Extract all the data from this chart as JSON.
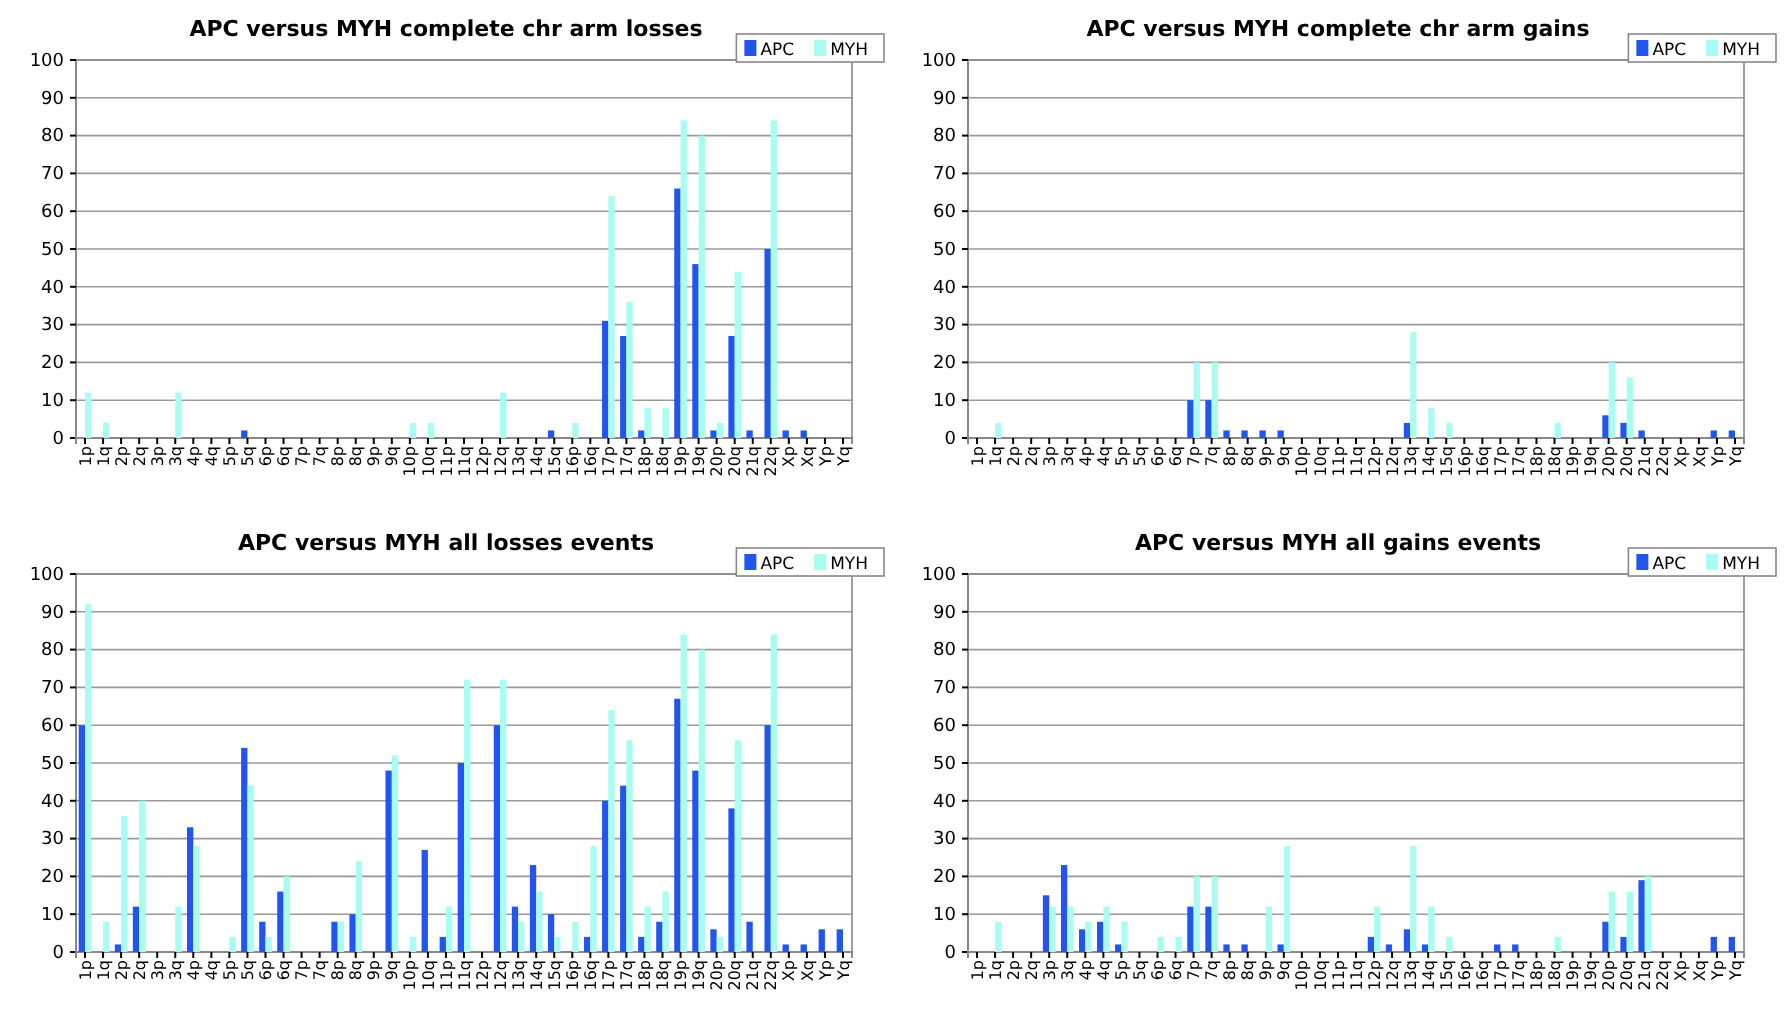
{
  "chart_data": [
    {
      "type": "bar",
      "title": "APC versus MYH complete chr arm losses",
      "categories": [
        "1p",
        "1q",
        "2p",
        "2q",
        "3p",
        "3q",
        "4p",
        "4q",
        "5p",
        "5q",
        "6p",
        "6q",
        "7p",
        "7q",
        "8p",
        "8q",
        "9p",
        "9q",
        "10p",
        "10q",
        "11p",
        "11q",
        "12p",
        "12q",
        "13q",
        "14q",
        "15q",
        "16p",
        "16q",
        "17p",
        "17q",
        "18p",
        "18q",
        "19p",
        "19q",
        "20p",
        "20q",
        "21q",
        "22q",
        "Xp",
        "Xq",
        "Yp",
        "Yq"
      ],
      "ylim": [
        0,
        100
      ],
      "yticks": [
        0,
        10,
        20,
        30,
        40,
        50,
        60,
        70,
        80,
        90,
        100
      ],
      "grid": "y",
      "legend": "top right",
      "series": [
        {
          "name": "APC",
          "color": "#2255ee",
          "values": [
            0,
            0,
            0,
            0,
            0,
            0,
            0,
            0,
            0,
            2,
            0,
            0,
            0,
            0,
            0,
            0,
            0,
            0,
            0,
            0,
            0,
            0,
            0,
            0,
            0,
            0,
            2,
            0,
            0,
            31,
            27,
            2,
            0,
            66,
            46,
            2,
            27,
            2,
            50,
            2,
            2,
            0,
            0
          ]
        },
        {
          "name": "MYH",
          "color": "#a8fcf0",
          "values": [
            12,
            4,
            0,
            0,
            0,
            12,
            0,
            0,
            0,
            0,
            0,
            0,
            0,
            0,
            0,
            0,
            0,
            0,
            4,
            4,
            0,
            0,
            0,
            12,
            0,
            0,
            0,
            4,
            0,
            64,
            36,
            8,
            8,
            84,
            80,
            4,
            44,
            0,
            84,
            0,
            0,
            0,
            0
          ]
        }
      ]
    },
    {
      "type": "bar",
      "title": "APC versus MYH complete chr arm gains",
      "categories": [
        "1p",
        "1q",
        "2p",
        "2q",
        "3p",
        "3q",
        "4p",
        "4q",
        "5p",
        "5q",
        "6p",
        "6q",
        "7p",
        "7q",
        "8p",
        "8q",
        "9p",
        "9q",
        "10p",
        "10q",
        "11p",
        "11q",
        "12p",
        "12q",
        "13q",
        "14q",
        "15q",
        "16p",
        "16q",
        "17p",
        "17q",
        "18p",
        "18q",
        "19p",
        "19q",
        "20p",
        "20q",
        "21q",
        "22q",
        "Xp",
        "Xq",
        "Yp",
        "Yq"
      ],
      "ylim": [
        0,
        100
      ],
      "yticks": [
        0,
        10,
        20,
        30,
        40,
        50,
        60,
        70,
        80,
        90,
        100
      ],
      "grid": "y",
      "legend": "top right",
      "series": [
        {
          "name": "APC",
          "color": "#2255ee",
          "values": [
            0,
            0,
            0,
            0,
            0,
            0,
            0,
            0,
            0,
            0,
            0,
            0,
            10,
            10,
            2,
            2,
            2,
            2,
            0,
            0,
            0,
            0,
            0,
            0,
            4,
            0,
            0,
            0,
            0,
            0,
            0,
            0,
            0,
            0,
            0,
            6,
            4,
            2,
            0,
            0,
            0,
            2,
            2
          ]
        },
        {
          "name": "MYH",
          "color": "#a8fcf0",
          "values": [
            0,
            4,
            0,
            0,
            0,
            0,
            0,
            0,
            0,
            0,
            0,
            0,
            20,
            20,
            0,
            0,
            0,
            0,
            0,
            0,
            0,
            0,
            0,
            0,
            28,
            8,
            4,
            0,
            0,
            0,
            0,
            0,
            4,
            0,
            0,
            20,
            16,
            0,
            0,
            0,
            0,
            0,
            0
          ]
        }
      ]
    },
    {
      "type": "bar",
      "title": "APC versus MYH all losses events",
      "categories": [
        "1p",
        "1q",
        "2p",
        "2q",
        "3p",
        "3q",
        "4p",
        "4q",
        "5p",
        "5q",
        "6p",
        "6q",
        "7p",
        "7q",
        "8p",
        "8q",
        "9p",
        "9q",
        "10p",
        "10q",
        "11p",
        "11q",
        "12p",
        "12q",
        "13q",
        "14q",
        "15q",
        "16p",
        "16q",
        "17p",
        "17q",
        "18p",
        "18q",
        "19p",
        "19q",
        "20p",
        "20q",
        "21q",
        "22q",
        "Xp",
        "Xq",
        "Yp",
        "Yq"
      ],
      "ylim": [
        0,
        100
      ],
      "yticks": [
        0,
        10,
        20,
        30,
        40,
        50,
        60,
        70,
        80,
        90,
        100
      ],
      "grid": "y",
      "legend": "top right",
      "series": [
        {
          "name": "APC",
          "color": "#2255ee",
          "values": [
            60,
            0,
            2,
            12,
            0,
            0,
            33,
            0,
            0,
            54,
            8,
            16,
            0,
            0,
            8,
            10,
            0,
            48,
            0,
            27,
            4,
            50,
            0,
            60,
            12,
            23,
            10,
            0,
            4,
            40,
            44,
            4,
            8,
            67,
            48,
            6,
            38,
            8,
            60,
            2,
            2,
            6,
            6
          ]
        },
        {
          "name": "MYH",
          "color": "#a8fcf0",
          "values": [
            92,
            8,
            36,
            40,
            0,
            12,
            28,
            0,
            4,
            44,
            4,
            20,
            0,
            0,
            8,
            24,
            0,
            52,
            4,
            0,
            12,
            72,
            0,
            72,
            8,
            16,
            4,
            8,
            28,
            64,
            56,
            12,
            16,
            84,
            80,
            4,
            56,
            0,
            84,
            0,
            0,
            0,
            0
          ]
        }
      ]
    },
    {
      "type": "bar",
      "title": "APC versus MYH all gains events",
      "categories": [
        "1p",
        "1q",
        "2p",
        "2q",
        "3p",
        "3q",
        "4p",
        "4q",
        "5p",
        "5q",
        "6p",
        "6q",
        "7p",
        "7q",
        "8p",
        "8q",
        "9p",
        "9q",
        "10p",
        "10q",
        "11p",
        "11q",
        "12p",
        "12q",
        "13q",
        "14q",
        "15q",
        "16p",
        "16q",
        "17p",
        "17q",
        "18p",
        "18q",
        "19p",
        "19q",
        "20p",
        "20q",
        "21q",
        "22q",
        "Xp",
        "Xq",
        "Yp",
        "Yq"
      ],
      "ylim": [
        0,
        100
      ],
      "yticks": [
        0,
        10,
        20,
        30,
        40,
        50,
        60,
        70,
        80,
        90,
        100
      ],
      "grid": "y",
      "legend": "top right",
      "series": [
        {
          "name": "APC",
          "color": "#2255ee",
          "values": [
            0,
            0,
            0,
            0,
            15,
            23,
            6,
            8,
            2,
            0,
            0,
            0,
            12,
            12,
            2,
            2,
            0,
            2,
            0,
            0,
            0,
            0,
            4,
            2,
            6,
            2,
            0,
            0,
            0,
            2,
            2,
            0,
            0,
            0,
            0,
            8,
            4,
            19,
            0,
            0,
            0,
            4,
            4
          ]
        },
        {
          "name": "MYH",
          "color": "#a8fcf0",
          "values": [
            0,
            8,
            0,
            0,
            12,
            12,
            8,
            12,
            8,
            0,
            4,
            4,
            20,
            20,
            0,
            0,
            12,
            28,
            0,
            0,
            0,
            0,
            12,
            0,
            28,
            12,
            4,
            0,
            0,
            0,
            0,
            0,
            4,
            0,
            0,
            16,
            16,
            20,
            0,
            0,
            0,
            0,
            0
          ]
        }
      ]
    }
  ]
}
